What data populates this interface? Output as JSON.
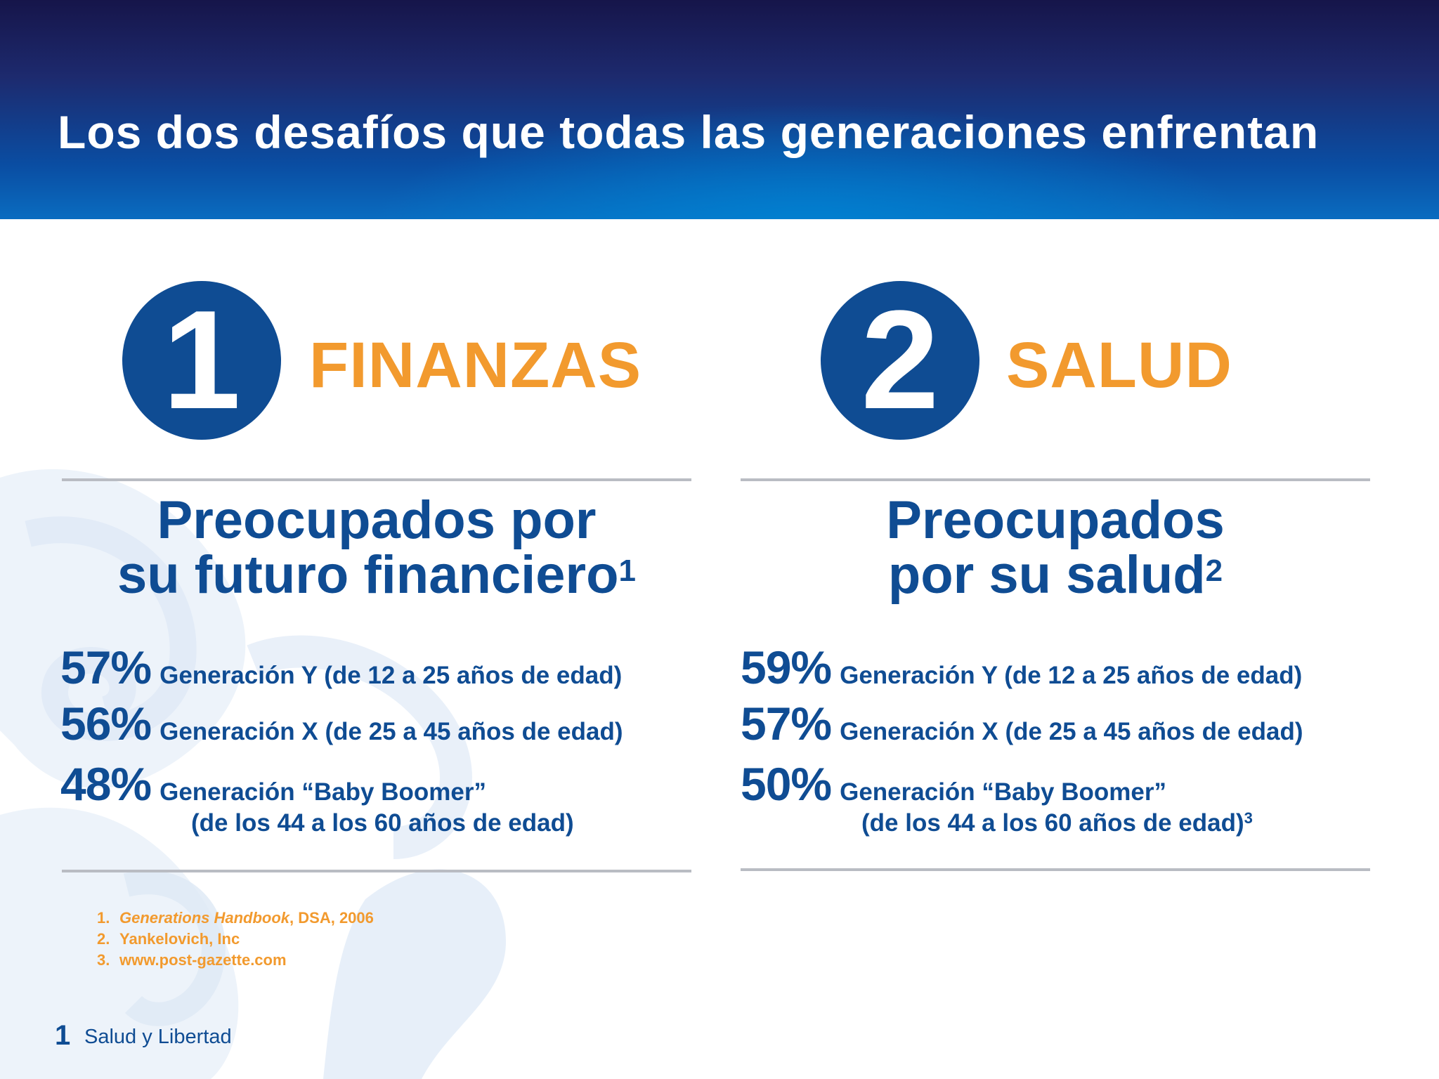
{
  "header": {
    "title": "Los dos desafíos que todas las generaciones enfrentan"
  },
  "sections": [
    {
      "number": "1",
      "title": "FINANZAS",
      "subhead_line1": "Preocupados por",
      "subhead_line2": "su futuro financiero",
      "subhead_sup": "1",
      "stats": [
        {
          "pct": "57%",
          "label": "Generación Y (de 12 a 25 años de edad)"
        },
        {
          "pct": "56%",
          "label": "Generación X (de 25 a 45 años de edad)"
        },
        {
          "pct": "48%",
          "label": "Generación “Baby Boomer”",
          "label2": "(de los 44 a los 60 años de edad)",
          "sup": ""
        }
      ]
    },
    {
      "number": "2",
      "title": "SALUD",
      "subhead_line1": "Preocupados",
      "subhead_line2": "por su salud",
      "subhead_sup": "2",
      "stats": [
        {
          "pct": "59%",
          "label": "Generación Y (de 12 a 25 años de edad)"
        },
        {
          "pct": "57%",
          "label": "Generación X (de 25 a 45 años de edad)"
        },
        {
          "pct": "50%",
          "label": "Generación “Baby Boomer”",
          "label2": "(de los 44 a los 60 años de edad)",
          "sup": "3"
        }
      ]
    }
  ],
  "references": [
    {
      "num": "1.",
      "title": "Generations Handbook",
      "rest": ", DSA, 2006"
    },
    {
      "num": "2.",
      "title": "",
      "rest": "Yankelovich, Inc"
    },
    {
      "num": "3.",
      "title": "",
      "rest": "www.post-gazette.com"
    }
  ],
  "footer": {
    "page_number": "1",
    "text": "Salud y Libertad"
  },
  "colors": {
    "navy": "#0f4c93",
    "orange": "#f29a2e",
    "rule": "#b9bcc3"
  }
}
